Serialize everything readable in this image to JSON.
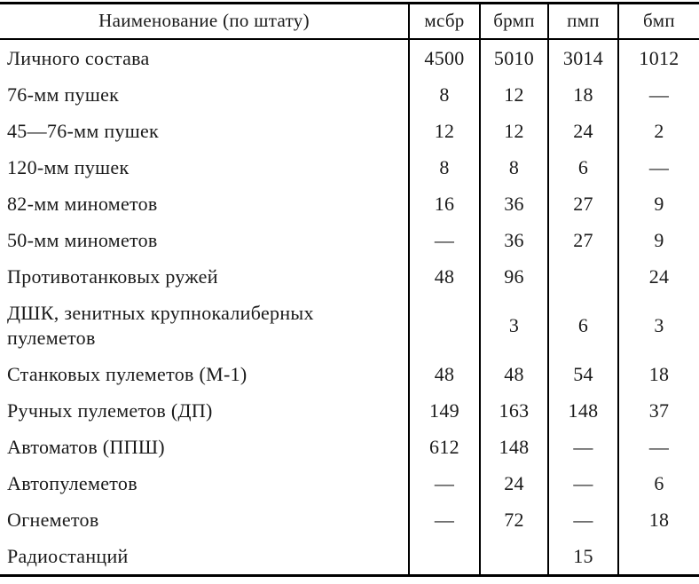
{
  "table": {
    "columns": [
      "Наименование (по штату)",
      "мсбр",
      "брмп",
      "пмп",
      "бмп"
    ],
    "rows": [
      {
        "label": "Личного состава",
        "values": [
          "4500",
          "5010",
          "3014",
          "1012"
        ]
      },
      {
        "label": "76-мм пушек",
        "values": [
          "8",
          "12",
          "18",
          "—"
        ]
      },
      {
        "label": "45—76-мм пушек",
        "values": [
          "12",
          "12",
          "24",
          "2"
        ]
      },
      {
        "label": "120-мм пушек",
        "values": [
          "8",
          "8",
          "6",
          "—"
        ]
      },
      {
        "label": "82-мм минометов",
        "values": [
          "16",
          "36",
          "27",
          "9"
        ]
      },
      {
        "label": "50-мм минометов",
        "values": [
          "—",
          "36",
          "27",
          "9"
        ]
      },
      {
        "label": "Противотанковых ружей",
        "values": [
          "48",
          "96",
          "",
          "24"
        ]
      },
      {
        "label": "ДШК, зенитных крупнокалиберных пулеметов",
        "values": [
          "",
          "3",
          "6",
          "3"
        ]
      },
      {
        "label": "Станковых пулеметов (М-1)",
        "values": [
          "48",
          "48",
          "54",
          "18"
        ]
      },
      {
        "label": "Ручных пулеметов (ДП)",
        "values": [
          "149",
          "163",
          "148",
          "37"
        ]
      },
      {
        "label": "Автоматов (ППШ)",
        "values": [
          "612",
          "148",
          "—",
          "—"
        ]
      },
      {
        "label": "Автопулеметов",
        "values": [
          "—",
          "24",
          "—",
          "6"
        ]
      },
      {
        "label": "Огнеметов",
        "values": [
          "—",
          "72",
          "—",
          "18"
        ]
      },
      {
        "label": "Радиостанций",
        "values": [
          "",
          "",
          "15",
          ""
        ]
      }
    ]
  }
}
